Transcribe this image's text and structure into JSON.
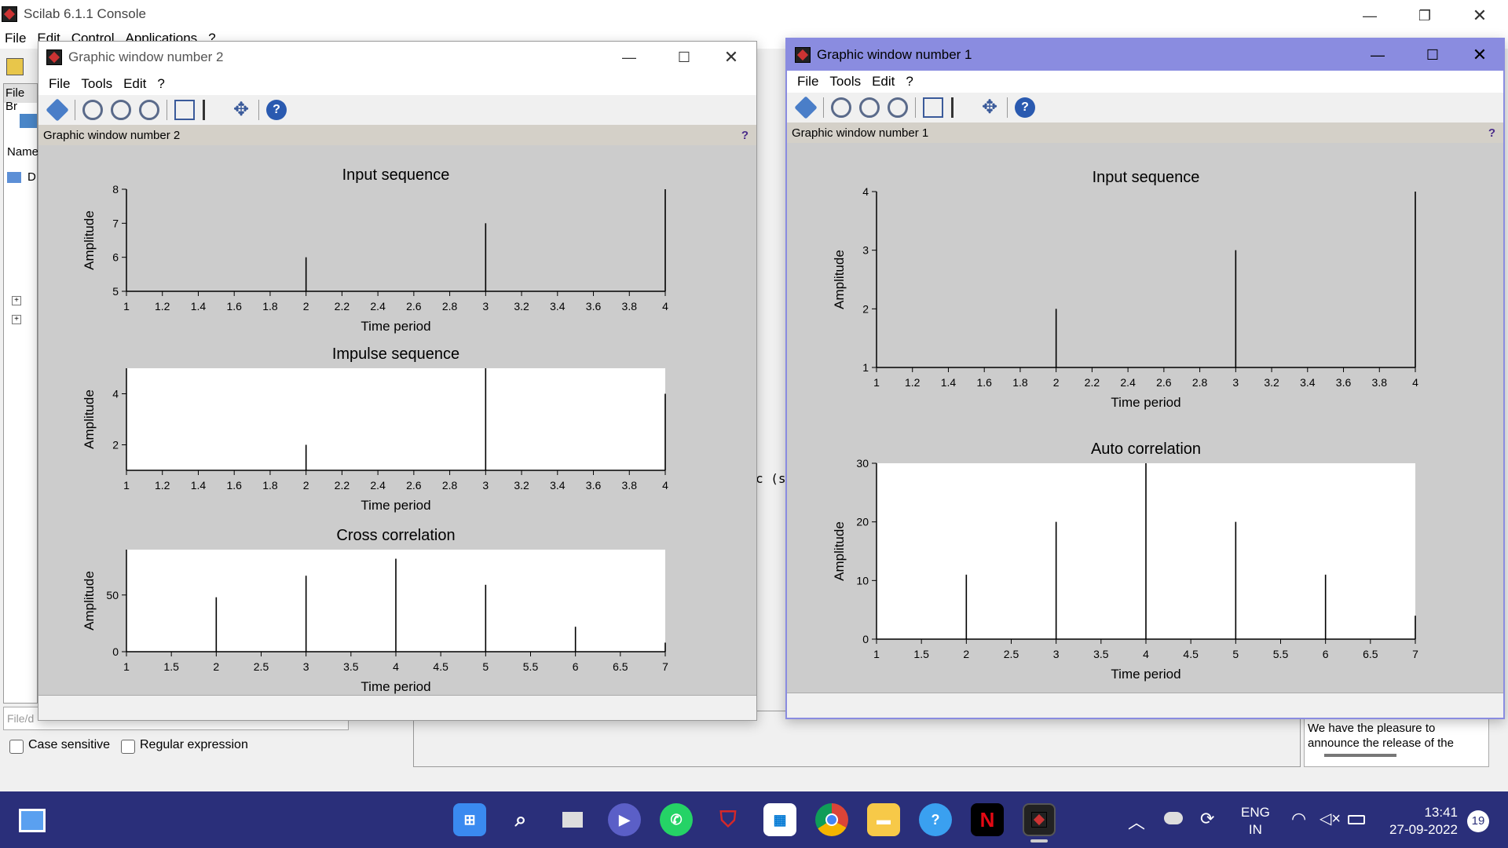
{
  "console": {
    "title": "Scilab 6.1.1 Console",
    "menu": [
      "File",
      "Edit",
      "Control",
      "Applications",
      "?"
    ],
    "file_browser_label": "File Br",
    "name_header": "Name",
    "tree_item": "D",
    "file_filter_placeholder": "File/d",
    "case_sensitive": "Case sensitive",
    "regular_expression": "Regular expression",
    "news_text_1": "We have the pleasure to",
    "news_text_2": "announce the release of the",
    "fragment": "c (s)"
  },
  "window2": {
    "title": "Graphic window number 2",
    "menu": [
      "File",
      "Tools",
      "Edit",
      "?"
    ],
    "header": "Graphic window number 2",
    "help": "?"
  },
  "window1": {
    "title": "Graphic window number 1",
    "menu": [
      "File",
      "Tools",
      "Edit",
      "?"
    ],
    "header": "Graphic window number 1",
    "help": "?"
  },
  "taskbar": {
    "lang1": "ENG",
    "lang2": "IN",
    "time": "13:41",
    "date": "27-09-2022",
    "notifications": "19"
  },
  "chart_data": [
    {
      "type": "bar",
      "window": "Graphic window number 2",
      "title": "Input sequence",
      "xlabel": "Time period",
      "ylabel": "Amplitude",
      "x": [
        2,
        3,
        4
      ],
      "values": [
        6,
        7,
        8
      ],
      "xlim": [
        1,
        4
      ],
      "ylim": [
        5,
        8
      ],
      "xticks": [
        "1",
        "1.2",
        "1.4",
        "1.6",
        "1.8",
        "2",
        "2.2",
        "2.4",
        "2.6",
        "2.8",
        "3",
        "3.2",
        "3.4",
        "3.6",
        "3.8",
        "4"
      ],
      "yticks": [
        "5",
        "6",
        "7",
        "8"
      ],
      "background": "#cccccc"
    },
    {
      "type": "bar",
      "window": "Graphic window number 2",
      "title": "Impulse sequence",
      "xlabel": "Time period",
      "ylabel": "Amplitude",
      "x": [
        2,
        3,
        4
      ],
      "values": [
        2,
        5,
        4
      ],
      "xlim": [
        1,
        4
      ],
      "ylim": [
        1,
        5
      ],
      "xticks": [
        "1",
        "1.2",
        "1.4",
        "1.6",
        "1.8",
        "2",
        "2.2",
        "2.4",
        "2.6",
        "2.8",
        "3",
        "3.2",
        "3.4",
        "3.6",
        "3.8",
        "4"
      ],
      "yticks": [
        "2",
        "4"
      ],
      "background": "#ffffff"
    },
    {
      "type": "bar",
      "window": "Graphic window number 2",
      "title": "Cross correlation",
      "xlabel": "Time period",
      "ylabel": "Amplitude",
      "x": [
        1,
        2,
        3,
        4,
        5,
        6,
        7
      ],
      "values": [
        0,
        48,
        67,
        82,
        59,
        22,
        8
      ],
      "xlim": [
        1,
        7
      ],
      "ylim": [
        0,
        90
      ],
      "xticks": [
        "1",
        "1.5",
        "2",
        "2.5",
        "3",
        "3.5",
        "4",
        "4.5",
        "5",
        "5.5",
        "6",
        "6.5",
        "7"
      ],
      "yticks": [
        "0",
        "50"
      ],
      "background": "#ffffff"
    },
    {
      "type": "bar",
      "window": "Graphic window number 1",
      "title": "Input sequence",
      "xlabel": "Time period",
      "ylabel": "Amplitude",
      "x": [
        2,
        3,
        4
      ],
      "values": [
        2,
        3,
        4
      ],
      "xlim": [
        1,
        4
      ],
      "ylim": [
        1,
        4
      ],
      "xticks": [
        "1",
        "1.2",
        "1.4",
        "1.6",
        "1.8",
        "2",
        "2.2",
        "2.4",
        "2.6",
        "2.8",
        "3",
        "3.2",
        "3.4",
        "3.6",
        "3.8",
        "4"
      ],
      "yticks": [
        "1",
        "2",
        "3",
        "4"
      ],
      "background": "#cccccc"
    },
    {
      "type": "bar",
      "window": "Graphic window number 1",
      "title": "Auto correlation",
      "xlabel": "Time period",
      "ylabel": "Amplitude",
      "x": [
        1,
        2,
        3,
        4,
        5,
        6,
        7
      ],
      "values": [
        0,
        11,
        20,
        30,
        20,
        11,
        4
      ],
      "xlim": [
        1,
        7
      ],
      "ylim": [
        0,
        30
      ],
      "xticks": [
        "1",
        "1.5",
        "2",
        "2.5",
        "3",
        "3.5",
        "4",
        "4.5",
        "5",
        "5.5",
        "6",
        "6.5",
        "7"
      ],
      "yticks": [
        "0",
        "10",
        "20",
        "30"
      ],
      "background": "#ffffff"
    }
  ]
}
